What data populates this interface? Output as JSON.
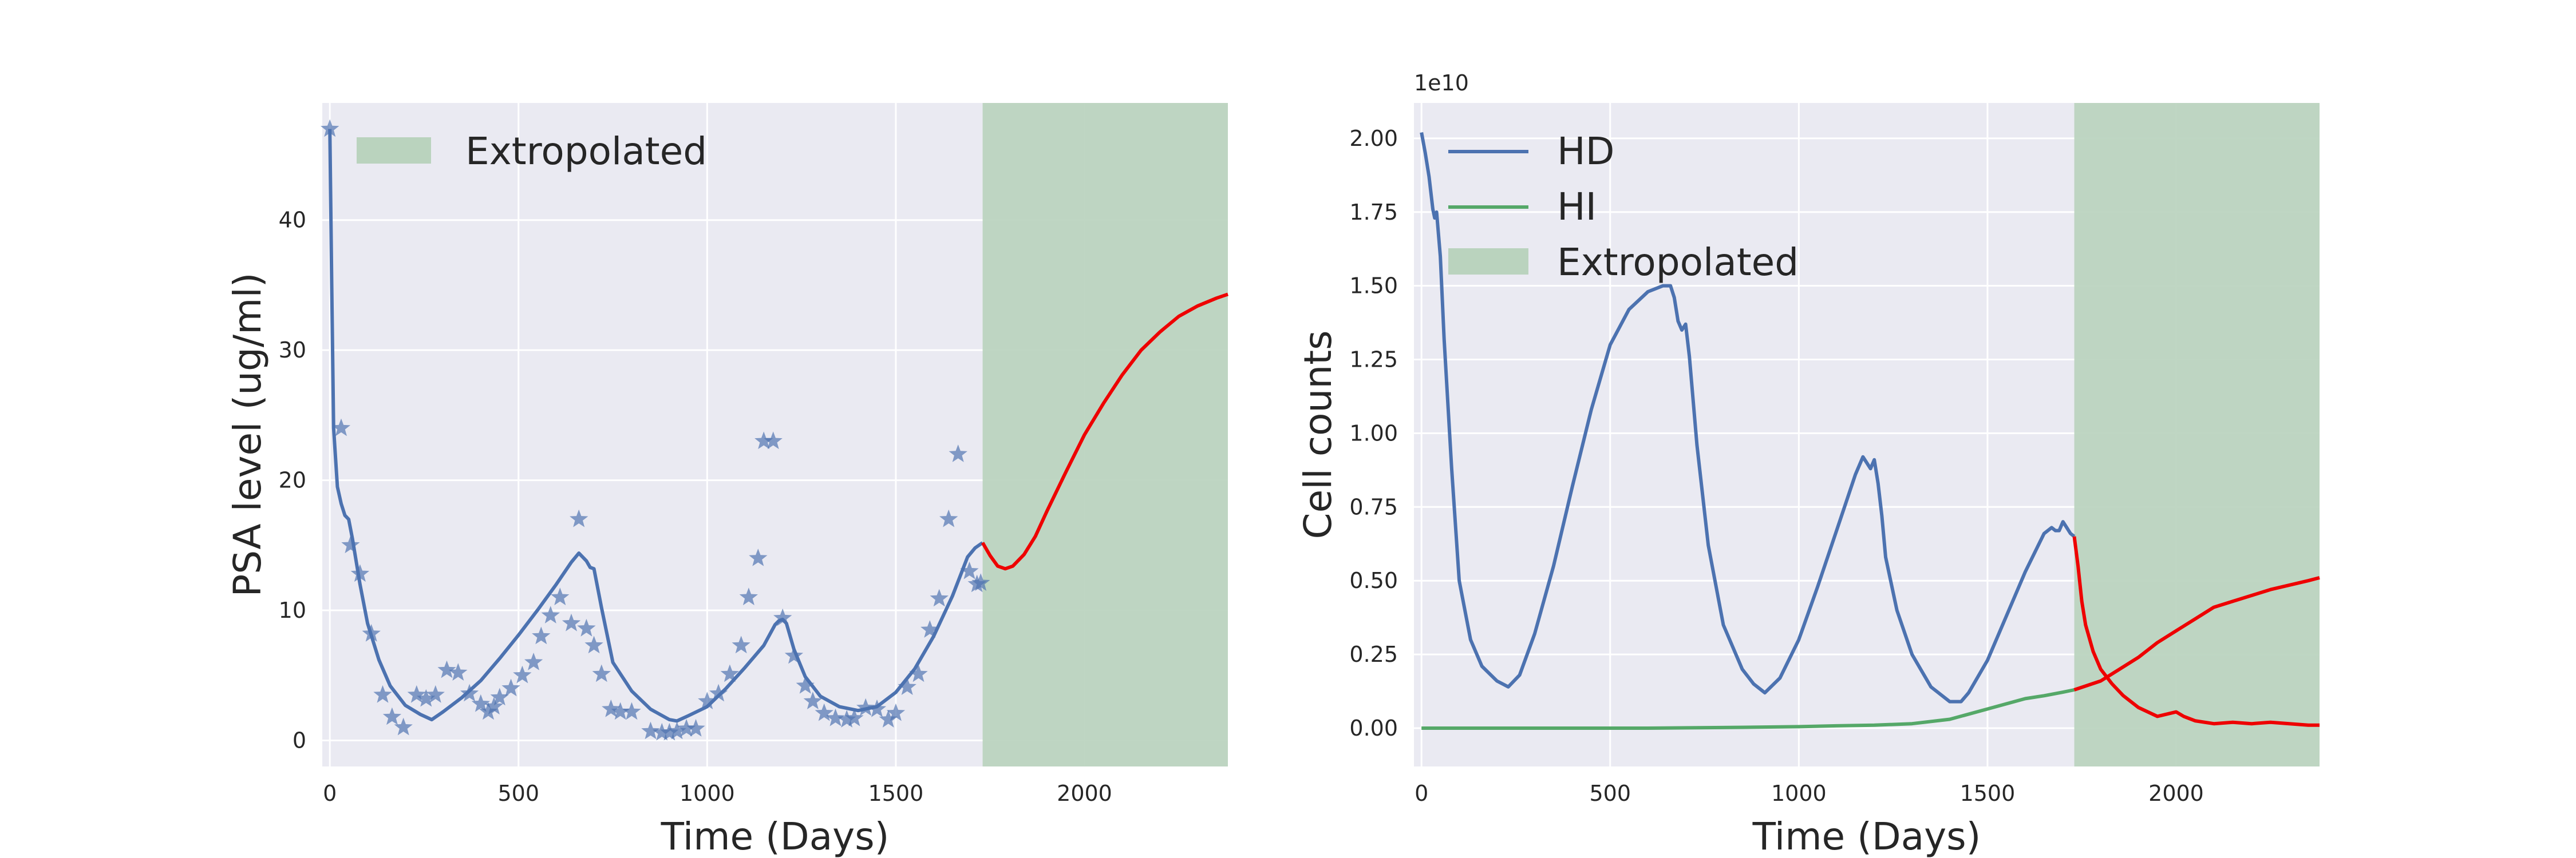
{
  "colors": {
    "plot_bg": "#EAEAF2",
    "grid": "#FFFFFF",
    "series_blue": "#4C72B0",
    "series_green": "#55A868",
    "extrapolated_fill": "#BAD3BE",
    "extrapolated_line": "#EE0000",
    "text": "#262626"
  },
  "chart_data": [
    {
      "type": "line",
      "xlabel": "Time (Days)",
      "ylabel": "PSA level (ug/ml)",
      "xlim": [
        -20,
        2380
      ],
      "ylim": [
        -2,
        49
      ],
      "xticks": [
        0,
        500,
        1000,
        1500,
        2000
      ],
      "yticks": [
        0,
        10,
        20,
        30,
        40
      ],
      "grid": true,
      "legend": {
        "position": "upper-left",
        "entries": [
          "Extropolated"
        ]
      },
      "extrapolated_range": [
        1730,
        2380
      ],
      "observed": {
        "marker": "star",
        "x": [
          0,
          30,
          55,
          80,
          110,
          140,
          165,
          195,
          230,
          255,
          280,
          310,
          340,
          370,
          400,
          420,
          435,
          450,
          480,
          510,
          540,
          560,
          585,
          610,
          640,
          660,
          680,
          700,
          720,
          745,
          770,
          800,
          850,
          880,
          900,
          920,
          945,
          970,
          1000,
          1030,
          1060,
          1090,
          1110,
          1135,
          1150,
          1175,
          1200,
          1230,
          1260,
          1280,
          1310,
          1340,
          1370,
          1390,
          1420,
          1450,
          1480,
          1500,
          1530,
          1560,
          1590,
          1615,
          1640,
          1665,
          1695,
          1715,
          1725
        ],
        "y": [
          47,
          24,
          15,
          12.8,
          8.2,
          3.5,
          1.8,
          1,
          3.5,
          3.2,
          3.5,
          5.4,
          5.2,
          3.6,
          2.8,
          2.2,
          2.6,
          3.3,
          4,
          5,
          6,
          8,
          9.6,
          11,
          9,
          17,
          8.6,
          7.3,
          5.1,
          2.4,
          2.2,
          2.2,
          0.7,
          0.6,
          0.6,
          0.7,
          0.9,
          0.9,
          3,
          3.6,
          5.1,
          7.3,
          11,
          14,
          23,
          23,
          9.4,
          6.5,
          4.2,
          3,
          2.1,
          1.7,
          1.6,
          1.7,
          2.5,
          2.4,
          1.6,
          2.1,
          4.1,
          5.1,
          8.5,
          10.9,
          17,
          22,
          13,
          12,
          12.1
        ]
      },
      "model": {
        "x": [
          0,
          5,
          10,
          20,
          30,
          40,
          50,
          60,
          80,
          100,
          130,
          160,
          200,
          240,
          270,
          300,
          350,
          400,
          450,
          500,
          550,
          600,
          640,
          660,
          680,
          690,
          700,
          720,
          750,
          800,
          850,
          900,
          920,
          950,
          1000,
          1050,
          1100,
          1150,
          1180,
          1190,
          1200,
          1210,
          1230,
          1260,
          1300,
          1350,
          1400,
          1450,
          1500,
          1550,
          1600,
          1650,
          1690,
          1710,
          1720,
          1730
        ],
        "y": [
          47,
          35,
          24,
          19.5,
          18.2,
          17.3,
          17,
          15.5,
          12,
          9,
          6.2,
          4.2,
          2.7,
          2,
          1.6,
          2.2,
          3.3,
          4.6,
          6.3,
          8.1,
          10,
          12,
          13.7,
          14.4,
          13.8,
          13.3,
          13.2,
          10.2,
          6,
          3.8,
          2.4,
          1.6,
          1.5,
          1.9,
          2.6,
          4,
          5.6,
          7.3,
          8.9,
          9.2,
          9.3,
          9,
          7,
          4.9,
          3.4,
          2.6,
          2.3,
          2.6,
          3.7,
          5.5,
          8,
          11.1,
          14.1,
          14.8,
          15,
          15.2
        ]
      },
      "extrapolated": {
        "x": [
          1730,
          1750,
          1770,
          1790,
          1810,
          1840,
          1870,
          1900,
          1950,
          2000,
          2050,
          2100,
          2150,
          2200,
          2250,
          2300,
          2350,
          2380
        ],
        "y": [
          15.2,
          14.2,
          13.4,
          13.2,
          13.4,
          14.3,
          15.7,
          17.6,
          20.6,
          23.5,
          25.9,
          28.1,
          30,
          31.4,
          32.6,
          33.4,
          34,
          34.3
        ]
      }
    },
    {
      "type": "line",
      "xlabel": "Time (Days)",
      "ylabel": "Cell counts",
      "y_offset": "1e10",
      "xlim": [
        -20,
        2380
      ],
      "ylim": [
        -0.13,
        2.12
      ],
      "xticks": [
        0,
        500,
        1000,
        1500,
        2000
      ],
      "yticks": [
        "0.00",
        "0.25",
        "0.50",
        "0.75",
        "1.00",
        "1.25",
        "1.50",
        "1.75",
        "2.00"
      ],
      "grid": true,
      "legend": {
        "position": "upper-left",
        "entries": [
          "HD",
          "HI",
          "Extropolated"
        ]
      },
      "extrapolated_range": [
        1730,
        2380
      ],
      "series": [
        {
          "name": "HD",
          "x": [
            0,
            10,
            20,
            30,
            35,
            40,
            50,
            60,
            80,
            100,
            130,
            160,
            200,
            230,
            260,
            300,
            350,
            400,
            450,
            500,
            550,
            600,
            640,
            660,
            670,
            680,
            690,
            700,
            710,
            730,
            760,
            800,
            850,
            880,
            910,
            950,
            1000,
            1050,
            1100,
            1150,
            1170,
            1180,
            1190,
            1200,
            1210,
            1220,
            1230,
            1260,
            1300,
            1350,
            1400,
            1430,
            1450,
            1500,
            1550,
            1600,
            1650,
            1670,
            1680,
            1690,
            1700,
            1710,
            1720,
            1730
          ],
          "y": [
            2.02,
            1.95,
            1.87,
            1.76,
            1.73,
            1.75,
            1.6,
            1.32,
            0.88,
            0.5,
            0.3,
            0.21,
            0.16,
            0.14,
            0.18,
            0.32,
            0.55,
            0.82,
            1.08,
            1.3,
            1.42,
            1.48,
            1.5,
            1.5,
            1.46,
            1.38,
            1.35,
            1.37,
            1.26,
            0.96,
            0.62,
            0.35,
            0.2,
            0.15,
            0.12,
            0.17,
            0.3,
            0.48,
            0.67,
            0.86,
            0.92,
            0.9,
            0.88,
            0.91,
            0.83,
            0.72,
            0.58,
            0.4,
            0.25,
            0.14,
            0.09,
            0.09,
            0.12,
            0.23,
            0.38,
            0.53,
            0.66,
            0.68,
            0.67,
            0.67,
            0.7,
            0.68,
            0.66,
            0.65
          ]
        },
        {
          "name": "HI",
          "x": [
            0,
            200,
            400,
            600,
            800,
            1000,
            1100,
            1200,
            1300,
            1400,
            1500,
            1600,
            1650,
            1700,
            1730
          ],
          "y": [
            0,
            0,
            0,
            0,
            0.002,
            0.005,
            0.008,
            0.01,
            0.015,
            0.03,
            0.065,
            0.1,
            0.11,
            0.122,
            0.13
          ]
        }
      ],
      "extrapolated": {
        "x": [
          1730,
          1740,
          1750,
          1760,
          1780,
          1800,
          1830,
          1860,
          1900,
          1950,
          2000,
          2020,
          2050,
          2100,
          2150,
          2200,
          2250,
          2300,
          2350,
          2380
        ],
        "y": [
          0.65,
          0.55,
          0.43,
          0.35,
          0.26,
          0.2,
          0.15,
          0.11,
          0.07,
          0.04,
          0.055,
          0.04,
          0.025,
          0.015,
          0.02,
          0.015,
          0.02,
          0.015,
          0.01,
          0.01
        ]
      },
      "hi_extrapolated": {
        "x": [
          1730,
          1800,
          1850,
          1900,
          1950,
          2000,
          2050,
          2100,
          2150,
          2200,
          2250,
          2300,
          2350,
          2380
        ],
        "y": [
          0.13,
          0.16,
          0.2,
          0.24,
          0.29,
          0.33,
          0.37,
          0.41,
          0.43,
          0.45,
          0.47,
          0.485,
          0.5,
          0.51
        ]
      }
    }
  ]
}
